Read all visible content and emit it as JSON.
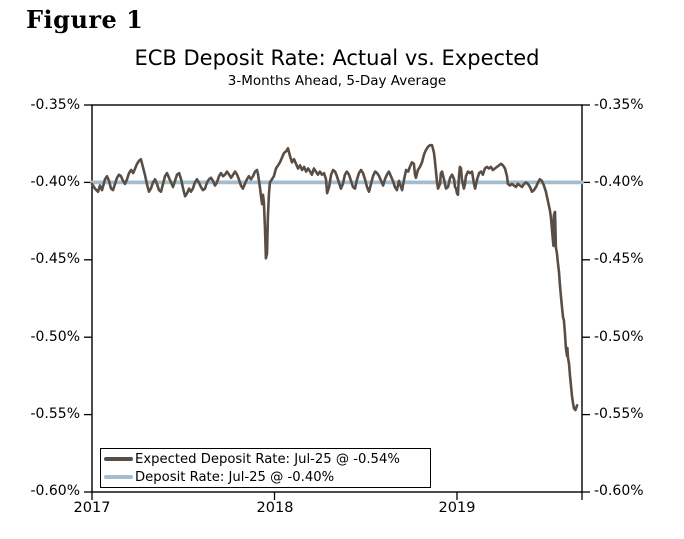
{
  "figure_label": "Figure 1",
  "chart": {
    "title": "ECB Deposit Rate: Actual vs. Expected",
    "subtitle": "3-Months Ahead, 5-Day Average"
  },
  "legend": {
    "items": [
      {
        "label": "Expected Deposit Rate: Jul-25 @ -0.54%",
        "color": "#594e45"
      },
      {
        "label": "Deposit Rate: Jul-25 @ -0.40%",
        "color": "#a4bccb"
      }
    ]
  },
  "chart_data": {
    "type": "line",
    "title": "ECB Deposit Rate: Actual vs. Expected",
    "subtitle": "3-Months Ahead, 5-Day Average",
    "xlabel": "",
    "ylabel": "",
    "xlim": [
      2017.0,
      2019.685
    ],
    "ylim": [
      -0.6,
      -0.35
    ],
    "grid": false,
    "legend_position": "bottom-left",
    "axis_color": "#000000",
    "y_ticks": [
      -0.35,
      -0.4,
      -0.45,
      -0.5,
      -0.55,
      -0.6
    ],
    "y_tick_labels": [
      "-0.35%",
      "-0.40%",
      "-0.45%",
      "-0.50%",
      "-0.55%",
      "-0.60%"
    ],
    "x_ticks": [
      2017,
      2018,
      2019
    ],
    "x_tick_labels": [
      "2017",
      "2018",
      "2019"
    ],
    "series": [
      {
        "name": "Expected Deposit Rate",
        "color": "#594e45",
        "width": 2.6,
        "points": [
          [
            2017.0,
            -0.401
          ],
          [
            2017.016,
            -0.404
          ],
          [
            2017.033,
            -0.406
          ],
          [
            2017.044,
            -0.402
          ],
          [
            2017.055,
            -0.405
          ],
          [
            2017.071,
            -0.398
          ],
          [
            2017.082,
            -0.396
          ],
          [
            2017.093,
            -0.399
          ],
          [
            2017.104,
            -0.404
          ],
          [
            2017.115,
            -0.405
          ],
          [
            2017.126,
            -0.401
          ],
          [
            2017.137,
            -0.397
          ],
          [
            2017.148,
            -0.395
          ],
          [
            2017.159,
            -0.396
          ],
          [
            2017.17,
            -0.399
          ],
          [
            2017.181,
            -0.401
          ],
          [
            2017.192,
            -0.398
          ],
          [
            2017.203,
            -0.394
          ],
          [
            2017.214,
            -0.392
          ],
          [
            2017.225,
            -0.394
          ],
          [
            2017.236,
            -0.391
          ],
          [
            2017.247,
            -0.388
          ],
          [
            2017.258,
            -0.386
          ],
          [
            2017.268,
            -0.385
          ],
          [
            2017.279,
            -0.39
          ],
          [
            2017.29,
            -0.395
          ],
          [
            2017.301,
            -0.401
          ],
          [
            2017.312,
            -0.406
          ],
          [
            2017.323,
            -0.404
          ],
          [
            2017.334,
            -0.4
          ],
          [
            2017.345,
            -0.398
          ],
          [
            2017.356,
            -0.401
          ],
          [
            2017.367,
            -0.405
          ],
          [
            2017.378,
            -0.406
          ],
          [
            2017.389,
            -0.401
          ],
          [
            2017.4,
            -0.396
          ],
          [
            2017.411,
            -0.394
          ],
          [
            2017.422,
            -0.397
          ],
          [
            2017.433,
            -0.4
          ],
          [
            2017.444,
            -0.403
          ],
          [
            2017.455,
            -0.399
          ],
          [
            2017.466,
            -0.395
          ],
          [
            2017.477,
            -0.394
          ],
          [
            2017.488,
            -0.398
          ],
          [
            2017.499,
            -0.404
          ],
          [
            2017.51,
            -0.409
          ],
          [
            2017.521,
            -0.407
          ],
          [
            2017.532,
            -0.404
          ],
          [
            2017.542,
            -0.406
          ],
          [
            2017.553,
            -0.404
          ],
          [
            2017.564,
            -0.4
          ],
          [
            2017.575,
            -0.398
          ],
          [
            2017.586,
            -0.4
          ],
          [
            2017.597,
            -0.403
          ],
          [
            2017.608,
            -0.405
          ],
          [
            2017.619,
            -0.404
          ],
          [
            2017.63,
            -0.4
          ],
          [
            2017.641,
            -0.398
          ],
          [
            2017.652,
            -0.397
          ],
          [
            2017.663,
            -0.399
          ],
          [
            2017.674,
            -0.402
          ],
          [
            2017.685,
            -0.4
          ],
          [
            2017.696,
            -0.396
          ],
          [
            2017.707,
            -0.394
          ],
          [
            2017.718,
            -0.396
          ],
          [
            2017.729,
            -0.395
          ],
          [
            2017.74,
            -0.393
          ],
          [
            2017.751,
            -0.395
          ],
          [
            2017.762,
            -0.397
          ],
          [
            2017.773,
            -0.395
          ],
          [
            2017.784,
            -0.393
          ],
          [
            2017.795,
            -0.395
          ],
          [
            2017.805,
            -0.398
          ],
          [
            2017.816,
            -0.402
          ],
          [
            2017.827,
            -0.404
          ],
          [
            2017.838,
            -0.401
          ],
          [
            2017.849,
            -0.398
          ],
          [
            2017.86,
            -0.396
          ],
          [
            2017.871,
            -0.398
          ],
          [
            2017.882,
            -0.396
          ],
          [
            2017.893,
            -0.393
          ],
          [
            2017.904,
            -0.392
          ],
          [
            2017.91,
            -0.395
          ],
          [
            2017.915,
            -0.399
          ],
          [
            2017.921,
            -0.404
          ],
          [
            2017.926,
            -0.409
          ],
          [
            2017.932,
            -0.414
          ],
          [
            2017.937,
            -0.408
          ],
          [
            2017.942,
            -0.413
          ],
          [
            2017.948,
            -0.43
          ],
          [
            2017.953,
            -0.449
          ],
          [
            2017.959,
            -0.446
          ],
          [
            2017.964,
            -0.422
          ],
          [
            2017.97,
            -0.407
          ],
          [
            2017.975,
            -0.4
          ],
          [
            2017.986,
            -0.398
          ],
          [
            2017.997,
            -0.396
          ],
          [
            2018.008,
            -0.391
          ],
          [
            2018.019,
            -0.389
          ],
          [
            2018.03,
            -0.387
          ],
          [
            2018.041,
            -0.384
          ],
          [
            2018.052,
            -0.381
          ],
          [
            2018.063,
            -0.38
          ],
          [
            2018.074,
            -0.378
          ],
          [
            2018.085,
            -0.383
          ],
          [
            2018.096,
            -0.387
          ],
          [
            2018.107,
            -0.385
          ],
          [
            2018.118,
            -0.388
          ],
          [
            2018.129,
            -0.391
          ],
          [
            2018.14,
            -0.389
          ],
          [
            2018.151,
            -0.392
          ],
          [
            2018.162,
            -0.39
          ],
          [
            2018.173,
            -0.393
          ],
          [
            2018.184,
            -0.391
          ],
          [
            2018.195,
            -0.393
          ],
          [
            2018.205,
            -0.395
          ],
          [
            2018.216,
            -0.391
          ],
          [
            2018.227,
            -0.393
          ],
          [
            2018.238,
            -0.395
          ],
          [
            2018.249,
            -0.393
          ],
          [
            2018.26,
            -0.395
          ],
          [
            2018.271,
            -0.394
          ],
          [
            2018.282,
            -0.398
          ],
          [
            2018.288,
            -0.407
          ],
          [
            2018.299,
            -0.403
          ],
          [
            2018.31,
            -0.395
          ],
          [
            2018.321,
            -0.392
          ],
          [
            2018.332,
            -0.393
          ],
          [
            2018.342,
            -0.396
          ],
          [
            2018.353,
            -0.4
          ],
          [
            2018.364,
            -0.404
          ],
          [
            2018.375,
            -0.401
          ],
          [
            2018.386,
            -0.395
          ],
          [
            2018.397,
            -0.393
          ],
          [
            2018.408,
            -0.395
          ],
          [
            2018.419,
            -0.399
          ],
          [
            2018.43,
            -0.403
          ],
          [
            2018.441,
            -0.404
          ],
          [
            2018.452,
            -0.398
          ],
          [
            2018.463,
            -0.394
          ],
          [
            2018.474,
            -0.392
          ],
          [
            2018.485,
            -0.394
          ],
          [
            2018.496,
            -0.398
          ],
          [
            2018.507,
            -0.403
          ],
          [
            2018.518,
            -0.406
          ],
          [
            2018.529,
            -0.401
          ],
          [
            2018.54,
            -0.396
          ],
          [
            2018.551,
            -0.393
          ],
          [
            2018.562,
            -0.394
          ],
          [
            2018.573,
            -0.396
          ],
          [
            2018.584,
            -0.399
          ],
          [
            2018.595,
            -0.402
          ],
          [
            2018.605,
            -0.398
          ],
          [
            2018.616,
            -0.395
          ],
          [
            2018.627,
            -0.393
          ],
          [
            2018.638,
            -0.396
          ],
          [
            2018.649,
            -0.399
          ],
          [
            2018.66,
            -0.403
          ],
          [
            2018.671,
            -0.405
          ],
          [
            2018.682,
            -0.399
          ],
          [
            2018.693,
            -0.403
          ],
          [
            2018.699,
            -0.405
          ],
          [
            2018.71,
            -0.398
          ],
          [
            2018.721,
            -0.392
          ],
          [
            2018.732,
            -0.393
          ],
          [
            2018.742,
            -0.39
          ],
          [
            2018.753,
            -0.387
          ],
          [
            2018.764,
            -0.388
          ],
          [
            2018.77,
            -0.395
          ],
          [
            2018.775,
            -0.397
          ],
          [
            2018.786,
            -0.392
          ],
          [
            2018.797,
            -0.39
          ],
          [
            2018.808,
            -0.387
          ],
          [
            2018.819,
            -0.382
          ],
          [
            2018.83,
            -0.379
          ],
          [
            2018.841,
            -0.377
          ],
          [
            2018.852,
            -0.376
          ],
          [
            2018.863,
            -0.376
          ],
          [
            2018.868,
            -0.378
          ],
          [
            2018.874,
            -0.381
          ],
          [
            2018.879,
            -0.386
          ],
          [
            2018.885,
            -0.393
          ],
          [
            2018.89,
            -0.399
          ],
          [
            2018.896,
            -0.404
          ],
          [
            2018.907,
            -0.401
          ],
          [
            2018.912,
            -0.394
          ],
          [
            2018.918,
            -0.393
          ],
          [
            2018.929,
            -0.398
          ],
          [
            2018.934,
            -0.401
          ],
          [
            2018.94,
            -0.404
          ],
          [
            2018.951,
            -0.403
          ],
          [
            2018.962,
            -0.397
          ],
          [
            2018.973,
            -0.395
          ],
          [
            2018.984,
            -0.398
          ],
          [
            2018.989,
            -0.403
          ],
          [
            2018.995,
            -0.404
          ],
          [
            2019.0,
            -0.407
          ],
          [
            2019.005,
            -0.408
          ],
          [
            2019.011,
            -0.396
          ],
          [
            2019.016,
            -0.39
          ],
          [
            2019.022,
            -0.391
          ],
          [
            2019.027,
            -0.398
          ],
          [
            2019.038,
            -0.404
          ],
          [
            2019.044,
            -0.401
          ],
          [
            2019.049,
            -0.396
          ],
          [
            2019.06,
            -0.393
          ],
          [
            2019.071,
            -0.394
          ],
          [
            2019.082,
            -0.393
          ],
          [
            2019.093,
            -0.401
          ],
          [
            2019.099,
            -0.404
          ],
          [
            2019.11,
            -0.398
          ],
          [
            2019.121,
            -0.394
          ],
          [
            2019.132,
            -0.393
          ],
          [
            2019.142,
            -0.395
          ],
          [
            2019.153,
            -0.391
          ],
          [
            2019.164,
            -0.39
          ],
          [
            2019.175,
            -0.391
          ],
          [
            2019.186,
            -0.39
          ],
          [
            2019.197,
            -0.392
          ],
          [
            2019.208,
            -0.391
          ],
          [
            2019.219,
            -0.39
          ],
          [
            2019.23,
            -0.389
          ],
          [
            2019.241,
            -0.388
          ],
          [
            2019.252,
            -0.389
          ],
          [
            2019.263,
            -0.391
          ],
          [
            2019.274,
            -0.396
          ],
          [
            2019.279,
            -0.401
          ],
          [
            2019.29,
            -0.402
          ],
          [
            2019.301,
            -0.401
          ],
          [
            2019.312,
            -0.402
          ],
          [
            2019.323,
            -0.403
          ],
          [
            2019.334,
            -0.401
          ],
          [
            2019.345,
            -0.402
          ],
          [
            2019.356,
            -0.403
          ],
          [
            2019.367,
            -0.401
          ],
          [
            2019.378,
            -0.4
          ],
          [
            2019.389,
            -0.401
          ],
          [
            2019.4,
            -0.403
          ],
          [
            2019.411,
            -0.406
          ],
          [
            2019.422,
            -0.405
          ],
          [
            2019.433,
            -0.403
          ],
          [
            2019.444,
            -0.4
          ],
          [
            2019.454,
            -0.398
          ],
          [
            2019.465,
            -0.399
          ],
          [
            2019.476,
            -0.402
          ],
          [
            2019.487,
            -0.406
          ],
          [
            2019.498,
            -0.412
          ],
          [
            2019.509,
            -0.418
          ],
          [
            2019.515,
            -0.423
          ],
          [
            2019.52,
            -0.43
          ],
          [
            2019.526,
            -0.438
          ],
          [
            2019.529,
            -0.441
          ],
          [
            2019.531,
            -0.421
          ],
          [
            2019.537,
            -0.419
          ],
          [
            2019.542,
            -0.442
          ],
          [
            2019.548,
            -0.446
          ],
          [
            2019.553,
            -0.452
          ],
          [
            2019.559,
            -0.458
          ],
          [
            2019.564,
            -0.466
          ],
          [
            2019.57,
            -0.474
          ],
          [
            2019.575,
            -0.48
          ],
          [
            2019.581,
            -0.487
          ],
          [
            2019.586,
            -0.489
          ],
          [
            2019.592,
            -0.498
          ],
          [
            2019.597,
            -0.507
          ],
          [
            2019.603,
            -0.512
          ],
          [
            2019.605,
            -0.507
          ],
          [
            2019.608,
            -0.513
          ],
          [
            2019.614,
            -0.517
          ],
          [
            2019.619,
            -0.525
          ],
          [
            2019.625,
            -0.532
          ],
          [
            2019.63,
            -0.538
          ],
          [
            2019.636,
            -0.543
          ],
          [
            2019.641,
            -0.546
          ],
          [
            2019.649,
            -0.547
          ],
          [
            2019.658,
            -0.544
          ]
        ]
      },
      {
        "name": "Deposit Rate",
        "color": "#a4bccb",
        "width": 3.8,
        "points": [
          [
            2017.0,
            -0.4
          ],
          [
            2019.685,
            -0.4
          ]
        ]
      }
    ]
  }
}
